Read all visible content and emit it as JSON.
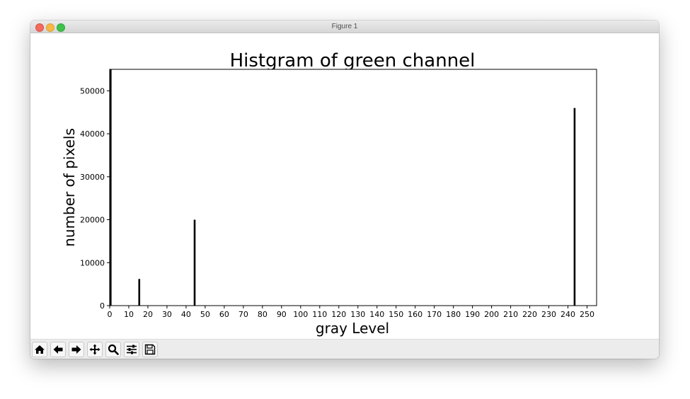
{
  "window": {
    "title": "Figure 1"
  },
  "toolbar": {
    "buttons": [
      "home-icon",
      "back-arrow-icon",
      "forward-arrow-icon",
      "pan-icon",
      "zoom-icon",
      "configure-subplots-icon",
      "save-icon"
    ]
  },
  "chart_data": {
    "type": "bar",
    "title": "Histgram of green channel",
    "xlabel": "gray Level",
    "ylabel": "number of pixels",
    "xlim": [
      0,
      255
    ],
    "ylim": [
      0,
      55000
    ],
    "xticks": [
      0,
      10,
      20,
      30,
      40,
      50,
      60,
      70,
      80,
      90,
      100,
      110,
      120,
      130,
      140,
      150,
      160,
      170,
      180,
      190,
      200,
      210,
      220,
      230,
      240,
      250
    ],
    "yticks": [
      0,
      10000,
      20000,
      30000,
      40000,
      50000
    ],
    "x": [
      0,
      15,
      44,
      243
    ],
    "values": [
      55000,
      6200,
      20000,
      46000
    ],
    "bar_color": "#000000",
    "grid": false
  }
}
